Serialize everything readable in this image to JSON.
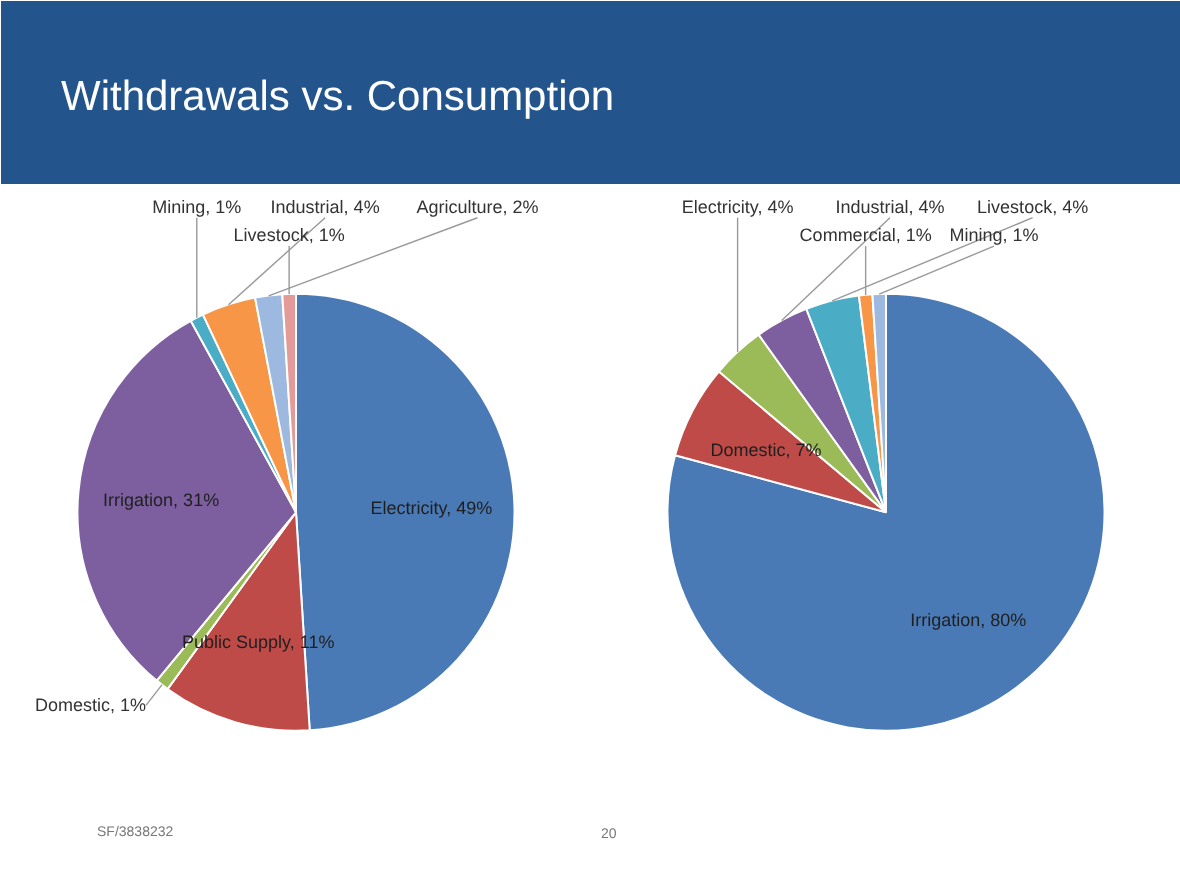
{
  "chart_data": [
    {
      "type": "pie",
      "title": "Withdrawals vs. Consumption",
      "annotations": [
        "SF/3838232",
        "20"
      ],
      "categories": [
        "Electricity",
        "Public Supply",
        "Domestic",
        "Irrigation",
        "Mining",
        "Industrial",
        "Agriculture",
        "Livestock"
      ],
      "values": [
        49,
        11,
        1,
        31,
        1,
        4,
        2,
        1
      ],
      "colors": [
        "#4a7ab5",
        "#be4b48",
        "#9bbb59",
        "#7d5fa0",
        "#4bacc6",
        "#f79646",
        "#9db9e0",
        "#e59a9a"
      ],
      "value_labels": [
        "49%",
        "11%",
        "1%",
        "31%",
        "1%",
        "4%",
        "2%",
        "1%"
      ]
    },
    {
      "type": "pie",
      "categories": [
        "Irrigation",
        "Domestic",
        "Electricity",
        "Industrial",
        "Livestock",
        "Commercial",
        "Mining"
      ],
      "values": [
        80,
        7,
        4,
        4,
        4,
        1,
        1
      ],
      "colors": [
        "#4a7ab5",
        "#be4b48",
        "#9bbb59",
        "#7d5fa0",
        "#4bacc6",
        "#f79646",
        "#9db9e0"
      ],
      "value_labels": [
        "80%",
        "7%",
        "4%",
        "4%",
        "4%",
        "1%",
        "1%"
      ]
    }
  ]
}
